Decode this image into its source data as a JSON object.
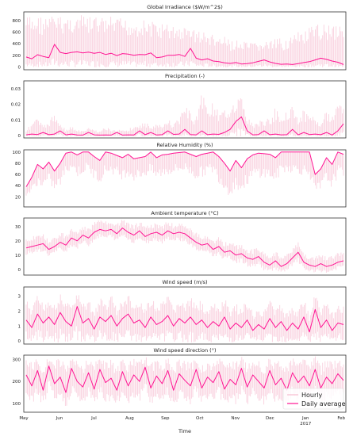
{
  "colors": {
    "hourly": "#f8c8d8",
    "daily": "#ff1493",
    "frame": "#333333"
  },
  "chart_data": {
    "type": "line",
    "xlabel": "Time",
    "xticks": [
      "May",
      "Jun",
      "Jul",
      "Aug",
      "Sep",
      "Oct",
      "Nov",
      "Dec",
      "Jan\n2017",
      "Feb"
    ],
    "x_range": [
      "2016-05-01",
      "2017-02-05"
    ],
    "legend": {
      "placement": "lower-right",
      "entries": [
        "Hourly",
        "Daily average"
      ]
    },
    "panels": [
      {
        "title": "Global Irradiance ($W/m^2$)",
        "ylim": [
          -50,
          950
        ],
        "yticks": [
          0,
          200,
          400,
          600,
          800
        ],
        "daily": [
          170,
          140,
          210,
          180,
          160,
          390,
          250,
          230,
          250,
          260,
          240,
          255,
          235,
          250,
          215,
          235,
          195,
          230,
          220,
          200,
          215,
          210,
          240,
          160,
          170,
          200,
          200,
          215,
          180,
          320,
          150,
          120,
          140,
          100,
          90,
          70,
          60,
          75,
          50,
          55,
          70,
          95,
          120,
          85,
          60,
          45,
          50,
          40,
          55,
          75,
          90,
          120,
          150,
          130,
          100,
          80,
          40
        ],
        "hourly_max": [
          900,
          880,
          900,
          890,
          880,
          900,
          870,
          900,
          890,
          880,
          900,
          860,
          880,
          870,
          850,
          870,
          840,
          850,
          820,
          830,
          810,
          820,
          780,
          800,
          760,
          740,
          720,
          700,
          690,
          680,
          650,
          620,
          600,
          560,
          540,
          520,
          480,
          460,
          440,
          430,
          420,
          430,
          440,
          460,
          480,
          500,
          520,
          560,
          600,
          640,
          680,
          720,
          760,
          780,
          800,
          820,
          840
        ]
      },
      {
        "title": "Precipitation (-)",
        "ylim": [
          -0.0015,
          0.035
        ],
        "yticks": [
          0,
          0.01,
          0.02,
          0.03
        ],
        "daily": [
          0.0005,
          0.001,
          0.0007,
          0.002,
          0.0006,
          0.001,
          0.003,
          0.0005,
          0.001,
          0.0004,
          0.0003,
          0.002,
          0.0005,
          0.0003,
          0.0004,
          0.0003,
          0.002,
          0.0003,
          0.0005,
          0.0004,
          0.003,
          0.0006,
          0.002,
          0.0004,
          0.0006,
          0.003,
          0.0008,
          0.001,
          0.004,
          0.0007,
          0.0005,
          0.003,
          0.0006,
          0.001,
          0.0008,
          0.002,
          0.004,
          0.009,
          0.012,
          0.003,
          0.0005,
          0.0007,
          0.003,
          0.0006,
          0.001,
          0.0005,
          0.0006,
          0.004,
          0.0005,
          0.002,
          0.0007,
          0.001,
          0.0006,
          0.002,
          0.0004,
          0.003,
          0.0075
        ],
        "hourly_max": [
          0.004,
          0.008,
          0.012,
          0.006,
          0.01,
          0.014,
          0.008,
          0.004,
          0.006,
          0.004,
          0.003,
          0.005,
          0.004,
          0.003,
          0.006,
          0.004,
          0.003,
          0.005,
          0.004,
          0.007,
          0.006,
          0.01,
          0.005,
          0.008,
          0.006,
          0.011,
          0.007,
          0.013,
          0.02,
          0.015,
          0.012,
          0.03,
          0.018,
          0.024,
          0.014,
          0.016,
          0.02,
          0.022,
          0.025,
          0.012,
          0.008,
          0.01,
          0.009,
          0.012,
          0.018,
          0.014,
          0.016,
          0.022,
          0.01,
          0.017,
          0.012,
          0.014,
          0.01,
          0.016,
          0.012,
          0.026,
          0.02
        ]
      },
      {
        "title": "Relative Humidity (%)",
        "ylim": [
          2,
          104
        ],
        "yticks": [
          20,
          40,
          60,
          80,
          100
        ],
        "daily": [
          38,
          55,
          78,
          70,
          82,
          66,
          80,
          98,
          100,
          95,
          100,
          100,
          92,
          85,
          100,
          98,
          94,
          90,
          96,
          88,
          90,
          92,
          100,
          90,
          95,
          96,
          98,
          99,
          100,
          96,
          92,
          96,
          98,
          100,
          92,
          80,
          66,
          85,
          72,
          88,
          95,
          98,
          97,
          96,
          90,
          100,
          100,
          100,
          100,
          100,
          100,
          60,
          70,
          90,
          78,
          100,
          96
        ],
        "hourly_min": [
          22,
          25,
          40,
          35,
          45,
          30,
          38,
          60,
          70,
          55,
          60,
          65,
          50,
          45,
          60,
          62,
          55,
          50,
          58,
          48,
          52,
          55,
          60,
          50,
          55,
          58,
          60,
          62,
          65,
          58,
          50,
          55,
          60,
          62,
          45,
          30,
          20,
          35,
          25,
          40,
          50,
          55,
          52,
          50,
          45,
          60,
          65,
          62,
          60,
          58,
          55,
          25,
          30,
          45,
          35,
          55,
          50
        ]
      },
      {
        "title": "Ambient temperature (°C)",
        "ylim": [
          -4,
          36
        ],
        "yticks": [
          0,
          10,
          20,
          30
        ],
        "daily": [
          15,
          16,
          17,
          18,
          14,
          16,
          19,
          17,
          22,
          20,
          24,
          22,
          26,
          28,
          27,
          28,
          25,
          29,
          26,
          24,
          27,
          23,
          25,
          26,
          24,
          27,
          25,
          26,
          25,
          22,
          19,
          17,
          18,
          14,
          16,
          12,
          13,
          10,
          11,
          8,
          7,
          9,
          5,
          3,
          6,
          2,
          4,
          8,
          12,
          5,
          3,
          2,
          4,
          2,
          3,
          5,
          6
        ],
        "hourly_min": [
          10,
          11,
          12,
          12,
          9,
          11,
          13,
          12,
          16,
          14,
          18,
          16,
          20,
          22,
          21,
          22,
          19,
          23,
          20,
          18,
          21,
          17,
          19,
          20,
          18,
          21,
          19,
          20,
          19,
          16,
          13,
          11,
          12,
          8,
          10,
          6,
          7,
          4,
          5,
          2,
          1,
          3,
          -1,
          -2,
          0,
          -3,
          -2,
          2,
          5,
          -1,
          -2,
          -3,
          -2,
          -3,
          -2,
          0,
          1
        ],
        "hourly_max": [
          22,
          23,
          24,
          25,
          21,
          23,
          27,
          24,
          29,
          27,
          31,
          29,
          33,
          35,
          34,
          35,
          32,
          35,
          33,
          31,
          34,
          30,
          32,
          33,
          31,
          34,
          32,
          33,
          32,
          29,
          26,
          24,
          25,
          21,
          23,
          19,
          20,
          17,
          18,
          15,
          14,
          16,
          12,
          10,
          13,
          9,
          11,
          15,
          19,
          12,
          10,
          9,
          11,
          9,
          10,
          12,
          13
        ]
      },
      {
        "title": "Wind speed (m/s)",
        "ylim": [
          -0.2,
          3.6
        ],
        "yticks": [
          0,
          1,
          2,
          3
        ],
        "daily": [
          1.4,
          0.9,
          1.8,
          1.2,
          1.6,
          1.1,
          1.9,
          1.3,
          1.0,
          2.3,
          1.2,
          1.5,
          0.8,
          1.6,
          1.3,
          1.7,
          1.0,
          1.5,
          1.8,
          1.2,
          1.4,
          0.9,
          1.6,
          1.1,
          1.3,
          1.7,
          1.0,
          1.5,
          1.2,
          1.6,
          1.1,
          1.4,
          0.9,
          1.3,
          1.0,
          1.6,
          0.8,
          1.2,
          0.9,
          1.4,
          0.7,
          1.1,
          0.8,
          1.5,
          0.9,
          1.3,
          0.7,
          1.2,
          0.8,
          1.6,
          0.6,
          2.1,
          0.9,
          1.4,
          0.7,
          1.2,
          1.1
        ],
        "hourly_max": [
          2.8,
          2.2,
          3.1,
          2.6,
          3.0,
          2.4,
          3.2,
          2.6,
          2.4,
          3.4,
          2.5,
          2.9,
          2.1,
          3.0,
          2.6,
          3.1,
          2.3,
          2.8,
          3.2,
          2.5,
          2.7,
          2.2,
          3.0,
          2.4,
          2.6,
          3.1,
          2.3,
          2.9,
          2.5,
          3.0,
          2.4,
          2.8,
          2.1,
          2.6,
          2.3,
          3.0,
          2.0,
          2.5,
          2.2,
          2.8,
          1.9,
          2.4,
          2.0,
          2.9,
          2.1,
          2.6,
          1.9,
          2.5,
          2.0,
          3.0,
          1.8,
          3.3,
          2.2,
          2.8,
          1.9,
          2.5,
          2.4
        ]
      },
      {
        "title": "Wind speed direction (°)",
        "ylim": [
          60,
          320
        ],
        "yticks": [
          100,
          200,
          300
        ],
        "daily": [
          230,
          180,
          250,
          160,
          270,
          190,
          220,
          150,
          260,
          200,
          175,
          240,
          165,
          255,
          195,
          215,
          160,
          245,
          180,
          230,
          200,
          265,
          170,
          225,
          190,
          250,
          160,
          235,
          205,
          180,
          255,
          170,
          220,
          195,
          245,
          165,
          210,
          185,
          260,
          175,
          230,
          200,
          170,
          250,
          185,
          215,
          160,
          240,
          195,
          225,
          180,
          255,
          170,
          220,
          190,
          235,
          205
        ],
        "hourly_min": [
          120,
          90,
          130,
          85,
          150,
          100,
          110,
          80,
          140,
          105,
          90,
          120,
          85,
          140,
          100,
          110,
          85,
          125,
          95,
          120,
          105,
          145,
          90,
          115,
          100,
          135,
          85,
          120,
          110,
          95,
          140,
          90,
          115,
          100,
          130,
          85,
          110,
          95,
          145,
          90,
          120,
          105,
          90,
          135,
          95,
          110,
          85,
          125,
          100,
          115,
          95,
          140,
          90,
          115,
          100,
          120,
          105
        ],
        "hourly_max": [
          310,
          290,
          315,
          280,
          320,
          300,
          305,
          275,
          315,
          295,
          285,
          310,
          280,
          318,
          292,
          300,
          278,
          312,
          288,
          305,
          295,
          318,
          282,
          302,
          290,
          314,
          278,
          306,
          296,
          284,
          316,
          282,
          300,
          292,
          312,
          280,
          298,
          286,
          318,
          284,
          306,
          294,
          282,
          314,
          288,
          300,
          278,
          310,
          292,
          304,
          286,
          316,
          282,
          300,
          290,
          308,
          296
        ]
      }
    ]
  }
}
